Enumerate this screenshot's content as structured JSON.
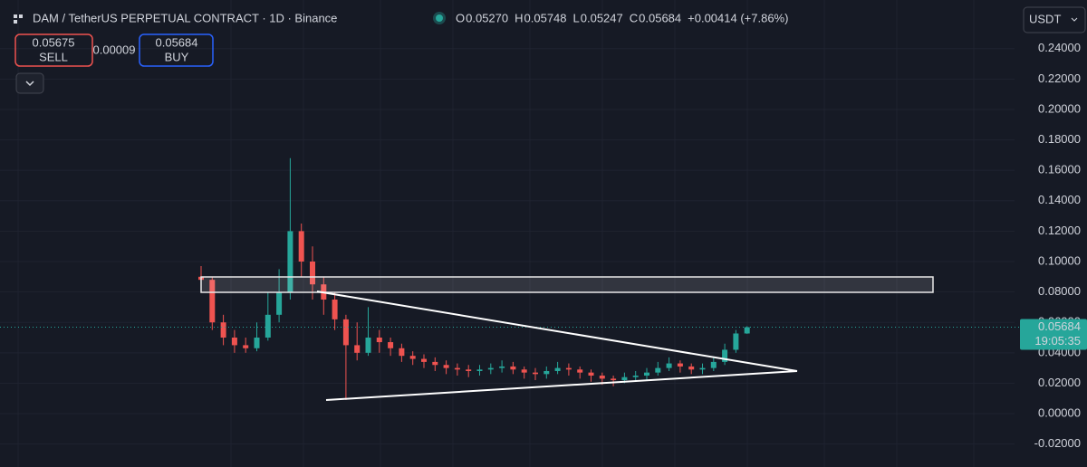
{
  "header": {
    "symbol": "DAM / TetherUS PERPETUAL CONTRACT · 1D · Binance",
    "ohlc": [
      {
        "label": "O",
        "value": "0.05270"
      },
      {
        "label": "H",
        "value": "0.05748"
      },
      {
        "label": "L",
        "value": "0.05247"
      },
      {
        "label": "C",
        "value": "0.05684"
      }
    ],
    "change": "+0.00414 (+7.86%)",
    "sell_price": "0.05675",
    "sell_label": "SELL",
    "spread": "0.00009",
    "buy_price": "0.05684",
    "buy_label": "BUY",
    "currency": "USDT",
    "price_tag": "0.05684",
    "countdown": "19:05:35"
  },
  "chart_data": {
    "type": "candlestick",
    "grid": true,
    "up_color": "#26a69a",
    "down_color": "#ef5350",
    "ylim": [
      -0.0351,
      0.272
    ],
    "yticks": [
      {
        "value": 0.24,
        "label": "0.24000"
      },
      {
        "value": 0.22,
        "label": "0.22000"
      },
      {
        "value": 0.2,
        "label": "0.20000"
      },
      {
        "value": 0.18,
        "label": "0.18000"
      },
      {
        "value": 0.16,
        "label": "0.16000"
      },
      {
        "value": 0.14,
        "label": "0.14000"
      },
      {
        "value": 0.12,
        "label": "0.12000"
      },
      {
        "value": 0.1,
        "label": "0.10000"
      },
      {
        "value": 0.08,
        "label": "0.08000"
      },
      {
        "value": 0.06,
        "label": "0.06000"
      },
      {
        "value": 0.04,
        "label": "0.04000"
      },
      {
        "value": 0.02,
        "label": "0.02000"
      },
      {
        "value": 0,
        "label": "0.00000"
      },
      {
        "value": -0.02,
        "label": "-0.02000"
      }
    ],
    "open": [
      0.09,
      0.088,
      0.06,
      0.05,
      0.045,
      0.043,
      0.05,
      0.065,
      0.08,
      0.12,
      0.1,
      0.085,
      0.075,
      0.062,
      0.045,
      0.04,
      0.05,
      0.047,
      0.043,
      0.038,
      0.036,
      0.034,
      0.032,
      0.03,
      0.029,
      0.028,
      0.029,
      0.03,
      0.031,
      0.029,
      0.027,
      0.026,
      0.028,
      0.03,
      0.029,
      0.027,
      0.025,
      0.023,
      0.022,
      0.024,
      0.025,
      0.027,
      0.03,
      0.033,
      0.031,
      0.029,
      0.03,
      0.034,
      0.042,
      0.0527
    ],
    "high": [
      0.097,
      0.09,
      0.065,
      0.055,
      0.05,
      0.06,
      0.08,
      0.095,
      0.168,
      0.125,
      0.11,
      0.09,
      0.08,
      0.065,
      0.06,
      0.07,
      0.055,
      0.05,
      0.046,
      0.041,
      0.039,
      0.037,
      0.035,
      0.033,
      0.032,
      0.032,
      0.033,
      0.035,
      0.034,
      0.031,
      0.03,
      0.031,
      0.034,
      0.033,
      0.031,
      0.029,
      0.027,
      0.025,
      0.027,
      0.028,
      0.03,
      0.034,
      0.037,
      0.035,
      0.033,
      0.033,
      0.037,
      0.046,
      0.055,
      0.05748
    ],
    "low": [
      0.08,
      0.055,
      0.045,
      0.04,
      0.04,
      0.041,
      0.048,
      0.06,
      0.075,
      0.09,
      0.075,
      0.065,
      0.055,
      0.009,
      0.035,
      0.038,
      0.04,
      0.038,
      0.034,
      0.032,
      0.03,
      0.028,
      0.026,
      0.025,
      0.024,
      0.025,
      0.026,
      0.027,
      0.026,
      0.023,
      0.022,
      0.023,
      0.026,
      0.025,
      0.023,
      0.021,
      0.019,
      0.018,
      0.02,
      0.021,
      0.022,
      0.025,
      0.028,
      0.027,
      0.026,
      0.026,
      0.028,
      0.032,
      0.04,
      0.05247
    ],
    "close": [
      0.088,
      0.06,
      0.05,
      0.045,
      0.043,
      0.05,
      0.065,
      0.08,
      0.12,
      0.1,
      0.085,
      0.075,
      0.062,
      0.045,
      0.04,
      0.05,
      0.047,
      0.043,
      0.038,
      0.036,
      0.034,
      0.032,
      0.03,
      0.029,
      0.028,
      0.029,
      0.03,
      0.031,
      0.029,
      0.027,
      0.026,
      0.028,
      0.03,
      0.029,
      0.027,
      0.025,
      0.023,
      0.022,
      0.024,
      0.025,
      0.027,
      0.03,
      0.033,
      0.031,
      0.029,
      0.03,
      0.034,
      0.042,
      0.0527,
      0.05684
    ]
  }
}
